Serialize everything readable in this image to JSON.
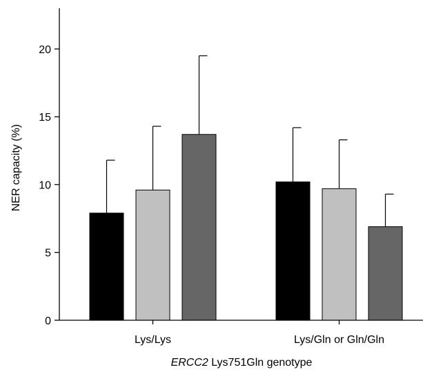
{
  "chart_data": {
    "type": "bar",
    "title": "",
    "ylabel": "NER capacity (%)",
    "xlabel_italic": "ERCC2",
    "xlabel_rest": " Lys751Gln genotype",
    "ylim": [
      0,
      23
    ],
    "yticks": [
      0,
      5,
      10,
      15,
      20
    ],
    "categories": [
      "Lys/Lys",
      "Lys/Gln or Gln/Gln"
    ],
    "series": [
      {
        "color": "#000000",
        "values": [
          7.9,
          10.2
        ],
        "errors": [
          3.9,
          4.0
        ]
      },
      {
        "color": "#c0c0c0",
        "values": [
          9.6,
          9.7
        ],
        "errors": [
          4.7,
          3.6
        ]
      },
      {
        "color": "#666666",
        "values": [
          13.7,
          6.9
        ],
        "errors": [
          5.8,
          2.4
        ]
      }
    ],
    "grid": false,
    "legend": "none"
  }
}
